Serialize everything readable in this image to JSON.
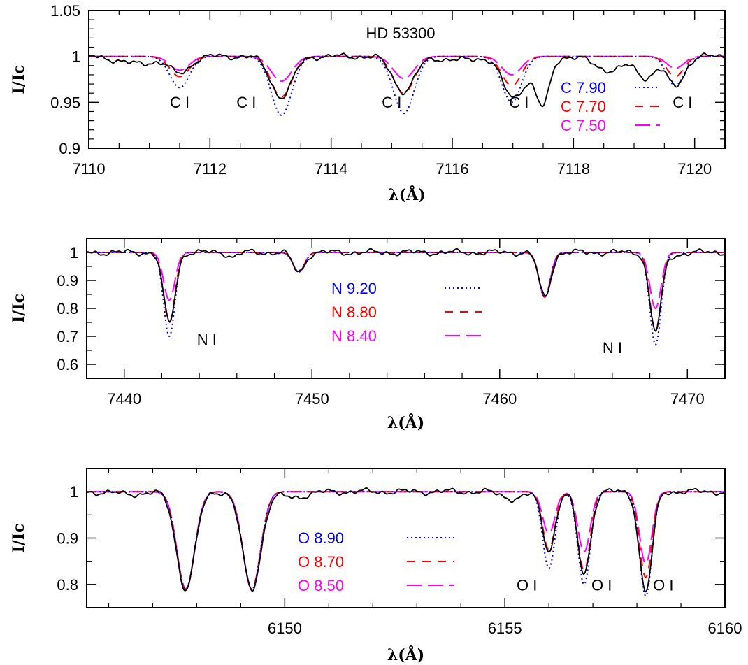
{
  "figure": {
    "title": "HD 53300"
  },
  "colors": {
    "observed": "#000000",
    "high": "#0000ff",
    "mid": "#ff0000",
    "low": "#ff00ff"
  },
  "chart_data": [
    {
      "type": "line",
      "xlabel": "λ(Å)",
      "ylabel": "I/Ic",
      "xlim": [
        7110,
        7120.5
      ],
      "ylim": [
        0.9,
        1.05
      ],
      "xticks": [
        7110,
        7112,
        7114,
        7116,
        7118,
        7120
      ],
      "yticks": [
        0.9,
        0.95,
        1,
        1.05
      ],
      "title": "HD 53300",
      "annotations": [
        {
          "text": "C I",
          "x": 7111.5,
          "y": 0.944
        },
        {
          "text": "C I",
          "x": 7112.6,
          "y": 0.944
        },
        {
          "text": "C I",
          "x": 7115.0,
          "y": 0.944
        },
        {
          "text": "C I",
          "x": 7117.1,
          "y": 0.944
        },
        {
          "text": "C I",
          "x": 7119.8,
          "y": 0.944
        }
      ],
      "legend": [
        {
          "label": "C 7.90",
          "color": "#0000ff",
          "style": "dotted"
        },
        {
          "label": "C 7.70",
          "color": "#ff0000",
          "style": "dashed"
        },
        {
          "label": "C 7.50",
          "color": "#ff00ff",
          "style": "longdash"
        }
      ],
      "lines": [
        {
          "center": 7111.5,
          "depths": [
            0.034,
            0.022,
            0.015
          ],
          "width": 0.16,
          "obs_depth": 0.018
        },
        {
          "center": 7113.18,
          "depths": [
            0.064,
            0.044,
            0.027
          ],
          "width": 0.17,
          "obs_depth": 0.044
        },
        {
          "center": 7115.2,
          "depths": [
            0.062,
            0.04,
            0.024
          ],
          "width": 0.17,
          "obs_depth": 0.038
        },
        {
          "center": 7116.98,
          "depths": [
            0.05,
            0.032,
            0.02
          ],
          "width": 0.16,
          "obs_depth": 0.04
        },
        {
          "center": 7119.68,
          "depths": [
            0.032,
            0.022,
            0.013
          ],
          "width": 0.14,
          "obs_depth": 0.032
        }
      ],
      "obs_extra": [
        {
          "center": 7117.5,
          "depth": 0.045,
          "width": 0.11
        },
        {
          "center": 7117.3,
          "depth": 0.015,
          "width": 0.2
        },
        {
          "center": 7118.6,
          "depth": 0.015,
          "width": 0.25
        },
        {
          "center": 7119.2,
          "depth": 0.022,
          "width": 0.15
        },
        {
          "center": 7110.8,
          "depth": 0.008,
          "width": 0.3
        },
        {
          "center": 7116.1,
          "depth": 0.004,
          "width": 0.3
        }
      ]
    },
    {
      "type": "line",
      "xlabel": "λ(Å)",
      "ylabel": "I/Ic",
      "xlim": [
        7438,
        7472
      ],
      "ylim": [
        0.55,
        1.05
      ],
      "xticks": [
        7440,
        7450,
        7460,
        7470
      ],
      "yticks": [
        0.6,
        0.7,
        0.8,
        0.9,
        1
      ],
      "annotations": [
        {
          "text": "N I",
          "x": 7444.4,
          "y": 0.67
        },
        {
          "text": "N I",
          "x": 7466.0,
          "y": 0.64
        }
      ],
      "legend": [
        {
          "label": "N 9.20",
          "color": "#0000ff",
          "style": "dotted"
        },
        {
          "label": "N 8.80",
          "color": "#ff0000",
          "style": "dashed"
        },
        {
          "label": "N 8.40",
          "color": "#ff00ff",
          "style": "longdash"
        }
      ],
      "lines": [
        {
          "center": 7442.4,
          "depths": [
            0.3,
            0.25,
            0.17
          ],
          "width": 0.3,
          "obs_depth": 0.25
        },
        {
          "center": 7449.3,
          "depths": [
            0.07,
            0.07,
            0.07
          ],
          "width": 0.3,
          "obs_depth": 0.07
        },
        {
          "center": 7462.4,
          "depths": [
            0.16,
            0.16,
            0.16
          ],
          "width": 0.3,
          "obs_depth": 0.16
        },
        {
          "center": 7468.3,
          "depths": [
            0.33,
            0.28,
            0.2
          ],
          "width": 0.3,
          "obs_depth": 0.28
        }
      ],
      "obs_extra": [
        {
          "center": 7445.8,
          "depth": 0.015,
          "width": 0.25
        },
        {
          "center": 7469.3,
          "depth": 0.012,
          "width": 0.3
        }
      ]
    },
    {
      "type": "line",
      "xlabel": "λ(Å)",
      "ylabel": "I/Ic",
      "xlim": [
        6145.5,
        6160
      ],
      "ylim": [
        0.75,
        1.05
      ],
      "xticks": [
        6150,
        6155,
        6160
      ],
      "yticks": [
        0.8,
        0.9,
        1
      ],
      "annotations": [
        {
          "text": "O I",
          "x": 6155.5,
          "y": 0.787
        },
        {
          "text": "O I",
          "x": 6157.2,
          "y": 0.787
        },
        {
          "text": "O I",
          "x": 6158.6,
          "y": 0.787
        }
      ],
      "legend": [
        {
          "label": "O 8.90",
          "color": "#0000ff",
          "style": "dotted"
        },
        {
          "label": "O 8.70",
          "color": "#ff0000",
          "style": "dashed"
        },
        {
          "label": "O 8.50",
          "color": "#ff00ff",
          "style": "longdash"
        }
      ],
      "lines": [
        {
          "center": 6147.75,
          "depths": [
            0.21,
            0.21,
            0.21
          ],
          "width": 0.2,
          "obs_depth": 0.21
        },
        {
          "center": 6149.25,
          "depths": [
            0.21,
            0.21,
            0.21
          ],
          "width": 0.2,
          "obs_depth": 0.21
        },
        {
          "center": 6156.0,
          "depths": [
            0.165,
            0.125,
            0.09
          ],
          "width": 0.14,
          "obs_depth": 0.125
        },
        {
          "center": 6156.8,
          "depths": [
            0.2,
            0.17,
            0.13
          ],
          "width": 0.14,
          "obs_depth": 0.175
        },
        {
          "center": 6158.2,
          "depths": [
            0.225,
            0.185,
            0.155
          ],
          "width": 0.14,
          "obs_depth": 0.215
        }
      ],
      "obs_extra": [
        {
          "center": 6150.2,
          "depth": 0.012,
          "width": 0.3
        },
        {
          "center": 6155.2,
          "depth": 0.015,
          "width": 0.25
        },
        {
          "center": 6146.5,
          "depth": 0.005,
          "width": 0.4
        }
      ]
    }
  ]
}
